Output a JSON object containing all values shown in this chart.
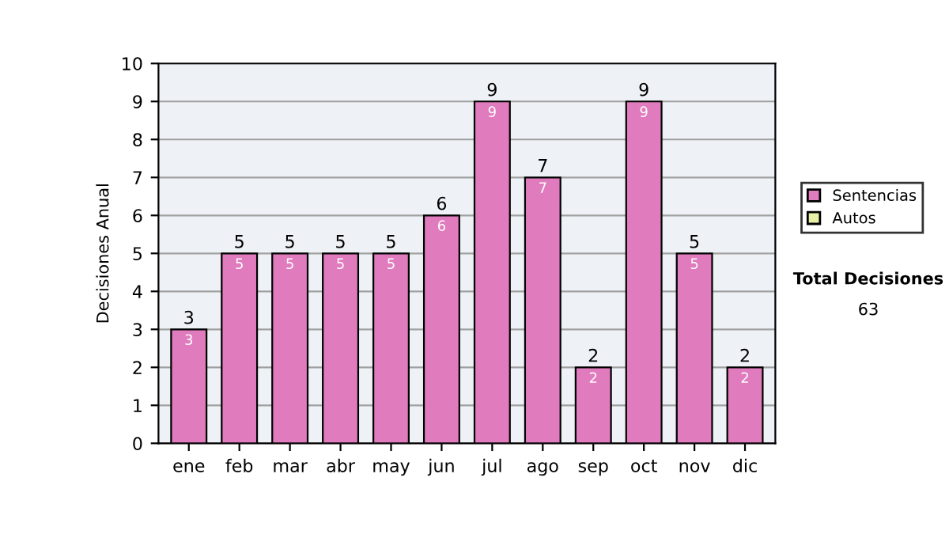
{
  "chart_data": {
    "type": "bar",
    "ylabel": "Decisiones Anual",
    "categories": [
      "ene",
      "feb",
      "mar",
      "abr",
      "may",
      "jun",
      "jul",
      "ago",
      "sep",
      "oct",
      "nov",
      "dic"
    ],
    "series": [
      {
        "name": "Sentencias",
        "color": "#e07cbe",
        "values": [
          3,
          5,
          5,
          5,
          5,
          6,
          9,
          7,
          2,
          9,
          5,
          2
        ],
        "value_labels": [
          "3",
          "5",
          "5",
          "5",
          "5",
          "6",
          "9",
          "7",
          "2",
          "9",
          "5",
          "2"
        ]
      },
      {
        "name": "Autos",
        "color": "#e8f0a8",
        "values": [
          0,
          0,
          0,
          0,
          0,
          0,
          0,
          0,
          0,
          0,
          0,
          0
        ]
      }
    ],
    "stacked": true,
    "totals": [
      "3",
      "5",
      "5",
      "5",
      "5",
      "6",
      "9",
      "7",
      "2",
      "9",
      "5",
      "2"
    ],
    "ylim": [
      0,
      10
    ],
    "yticks": [
      0,
      1,
      2,
      3,
      4,
      5,
      6,
      7,
      8,
      9,
      10
    ],
    "grid": "y",
    "legend": "right",
    "annotations": [
      "Total Decisiones",
      "63"
    ]
  }
}
